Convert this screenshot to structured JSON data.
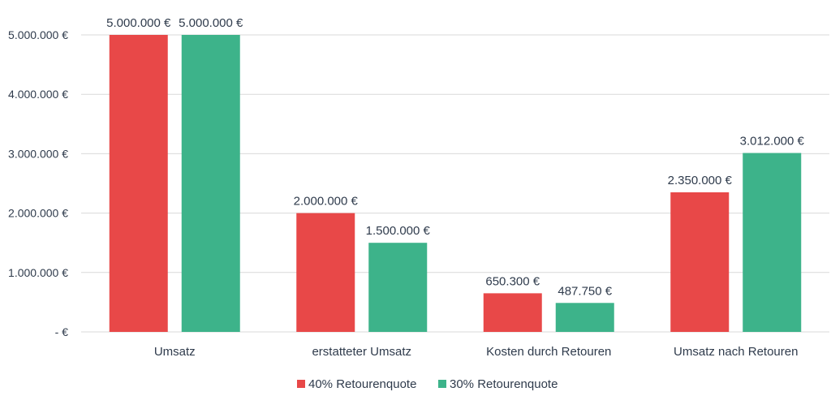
{
  "chart_data": {
    "type": "bar",
    "categories": [
      "Umsatz",
      "erstatteter Umsatz",
      "Kosten durch Retouren",
      "Umsatz nach Retouren"
    ],
    "series": [
      {
        "name": "40% Retourenquote",
        "color": "#e84848",
        "values": [
          5000000,
          2000000,
          650300,
          2350000
        ],
        "labels": [
          "5.000.000 €",
          "2.000.000 €",
          "650.300 €",
          "2.350.000 €"
        ]
      },
      {
        "name": "30% Retourenquote",
        "color": "#3db38a",
        "values": [
          5000000,
          1500000,
          487750,
          3012000
        ],
        "labels": [
          "5.000.000 €",
          "1.500.000 €",
          "487.750 €",
          "3.012.000 €"
        ]
      }
    ],
    "ylim": [
      0,
      5000000
    ],
    "yticks": [
      0,
      1000000,
      2000000,
      3000000,
      4000000,
      5000000
    ],
    "ytick_labels": [
      "-  €",
      "1.000.000 €",
      "2.000.000 €",
      "3.000.000 €",
      "4.000.000 €",
      "5.000.000 €"
    ],
    "grid": true,
    "legend": "bottom-center"
  }
}
